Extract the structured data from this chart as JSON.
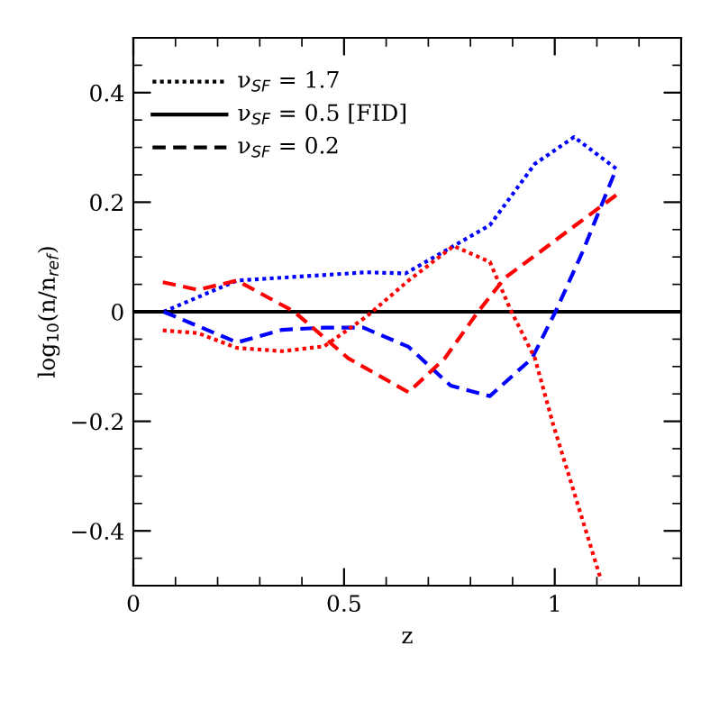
{
  "chart_data": {
    "type": "line",
    "xlabel": "z",
    "ylabel": "log$_{10}$(n/n$_{ref}$)",
    "xlim": [
      0,
      1.3
    ],
    "ylim": [
      -0.5,
      0.5
    ],
    "xticks": [
      0,
      0.5,
      1
    ],
    "yticks": [
      -0.4,
      -0.2,
      0,
      0.2,
      0.4
    ],
    "annotations": [
      "ν$_{SF}$ = 1.7",
      "ν$_{SF}$ = 0.5 [FID]",
      "ν$_{SF}$ = 0.2"
    ],
    "grid": false,
    "series": [
      {
        "color": "#0000ff",
        "line_style": "dotted",
        "x": [
          0.072,
          0.246,
          0.553,
          0.646,
          0.753,
          0.846,
          0.953,
          1.046,
          1.146
        ],
        "values": [
          0,
          0.057,
          0.072,
          0.07,
          0.117,
          0.158,
          0.27,
          0.319,
          0.261
        ]
      },
      {
        "color": "#000000",
        "line_style": "solid",
        "x": [
          0,
          1.3
        ],
        "values": [
          0,
          0
        ]
      },
      {
        "color": "#0000ff",
        "line_style": "dashed",
        "x": [
          0.072,
          0.246,
          0.353,
          0.453,
          0.546,
          0.653,
          0.753,
          0.846,
          0.946,
          1.003,
          1.067,
          1.146
        ],
        "values": [
          0,
          -0.056,
          -0.033,
          -0.029,
          -0.029,
          -0.064,
          -0.135,
          -0.154,
          -0.085,
          0.002,
          0.111,
          0.261
        ]
      },
      {
        "color": "#ff0000",
        "line_style": "dotted",
        "x": [
          0.07,
          0.153,
          0.246,
          0.353,
          0.453,
          0.553,
          0.653,
          0.76,
          0.846,
          0.896,
          0.953,
          0.996,
          1.11
        ],
        "values": [
          -0.034,
          -0.039,
          -0.066,
          -0.072,
          -0.063,
          -0.009,
          0.057,
          0.12,
          0.091,
          0.002,
          -0.085,
          -0.205,
          -0.49
        ]
      },
      {
        "color": "#ff0000",
        "line_style": "dashed",
        "x": [
          0.07,
          0.153,
          0.246,
          0.382,
          0.51,
          0.653,
          0.739,
          0.818,
          0.882,
          0.968,
          1.053,
          1.146
        ],
        "values": [
          0.054,
          0.04,
          0.057,
          0,
          -0.085,
          -0.147,
          -0.085,
          0,
          0.062,
          0.111,
          0.16,
          0.213
        ]
      }
    ]
  }
}
